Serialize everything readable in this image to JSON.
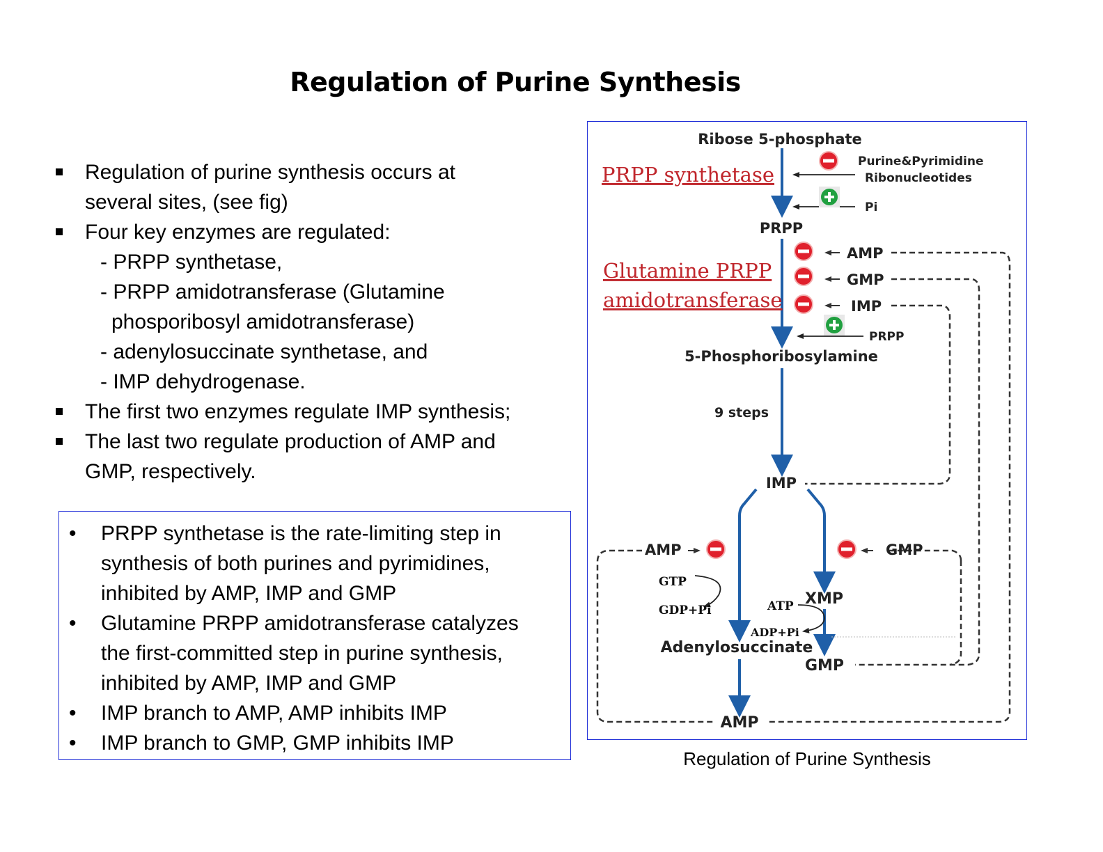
{
  "title": "Regulation of Purine Synthesis",
  "bullets": [
    "Regulation of purine synthesis occurs at",
    "several sites, (see fig)",
    "Four key enzymes are regulated:",
    "- PRPP synthetase,",
    "- PRPP amidotransferase (Glutamine",
    "phosporibosyl amidotransferase)",
    "- adenylosuccinate synthetase, and",
    "- IMP dehydrogenase.",
    "The first two enzymes regulate IMP synthesis;",
    "The last two regulate production of AMP and",
    "GMP, respectively."
  ],
  "box_bullets": [
    "PRPP synthetase is the rate-limiting step in",
    "synthesis of both purines and pyrimidines,",
    "inhibited by AMP, IMP and GMP",
    "Glutamine PRPP amidotransferase catalyzes",
    "the first-committed step in purine synthesis,",
    "inhibited by AMP, IMP and GMP",
    "IMP branch to AMP, AMP inhibits IMP",
    "IMP branch to GMP, GMP inhibits IMP"
  ],
  "bullet_marker": "•",
  "figure": {
    "ribose": "Ribose 5-phosphate",
    "prpp_synthetase": "PRPP synthetase",
    "purine_pyrimidine_1": "Purine&Pyrimidine",
    "purine_pyrimidine_2": "Ribonucleotides",
    "pi": "Pi",
    "prpp": "PRPP",
    "glutamine_1": "Glutamine PRPP",
    "glutamine_2": "amidotransferase",
    "amp": "AMP",
    "gmp": "GMP",
    "imp": "IMP",
    "prpp_activator": "PRPP",
    "phosphoribosylamine": "5-Phosphoribosylamine",
    "nine_steps": "9 steps",
    "imp_center": "IMP",
    "amp_left": "AMP",
    "gmp_right": "GMP",
    "gtp": "GTP",
    "gdp_pi": "GDP+Pi",
    "atp": "ATP",
    "xmp": "XMP",
    "adp_pi": "ADP+Pi",
    "adenylosuccinate": "Adenylosuccinate",
    "gmp_product": "GMP",
    "amp_product": "AMP",
    "colors": {
      "arrow": "#1f5fa8",
      "inhibit": "#e0202c",
      "activate": "#20a040",
      "enzyme_text": "#c0262c"
    }
  },
  "caption": "Regulation of Purine Synthesis"
}
